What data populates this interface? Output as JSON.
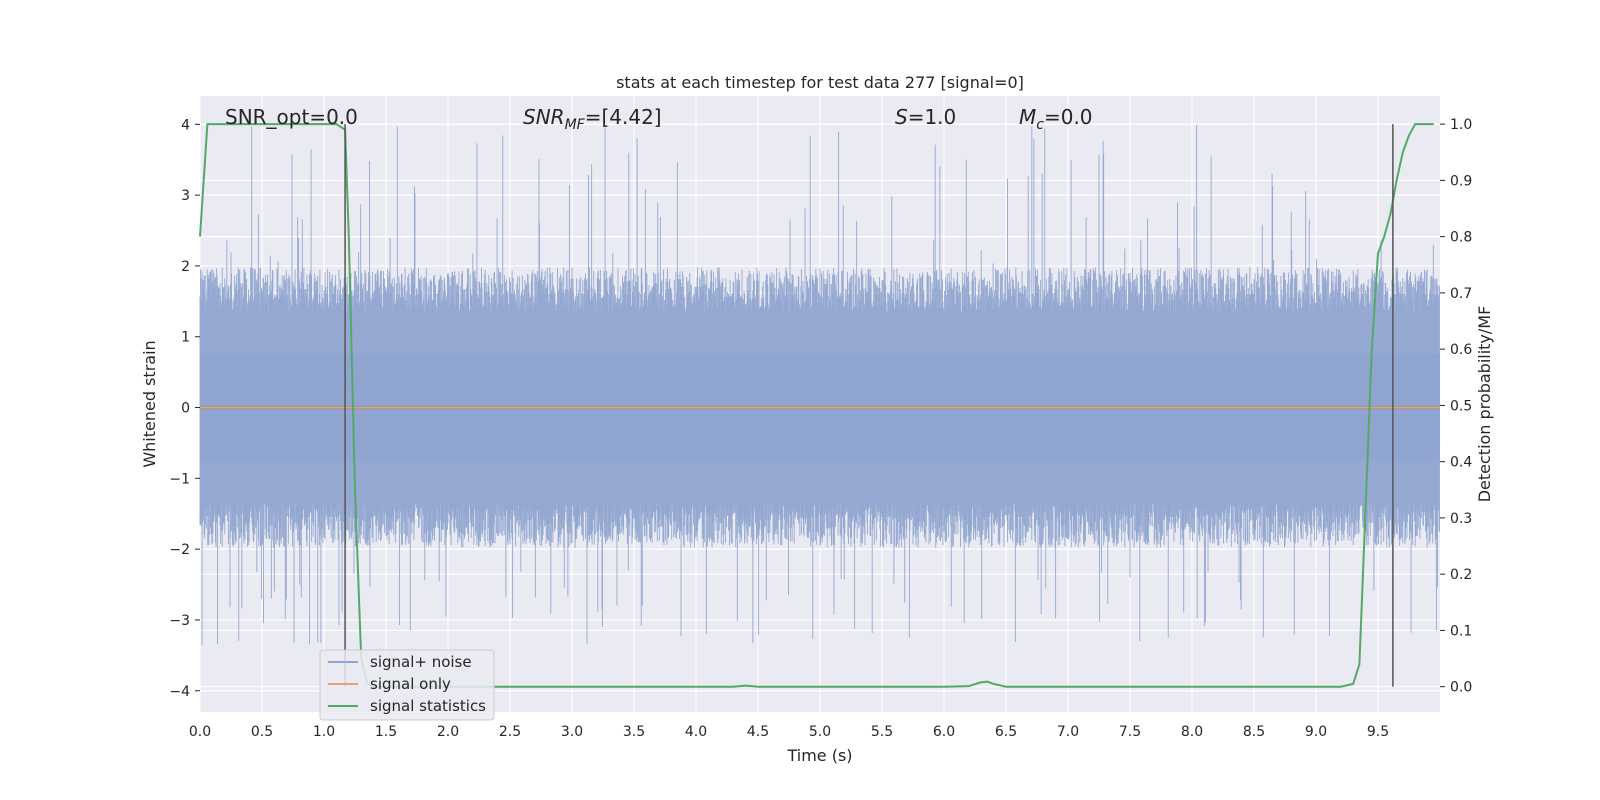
{
  "chart_data": {
    "type": "line",
    "title": "stats at each timestep for test data 277 [signal=0]",
    "xlabel": "Time (s)",
    "ylabel": "Whitened strain",
    "ylabel_right": "Detection probability/MF",
    "xlim": [
      0.0,
      10.0
    ],
    "ylim": [
      -4.3,
      4.4
    ],
    "ylim_right": [
      -0.045,
      1.05
    ],
    "x_ticks": [
      "0.0",
      "0.5",
      "1.0",
      "1.5",
      "2.0",
      "2.5",
      "3.0",
      "3.5",
      "4.0",
      "4.5",
      "5.0",
      "5.5",
      "6.0",
      "6.5",
      "7.0",
      "7.5",
      "8.0",
      "8.5",
      "9.0",
      "9.5"
    ],
    "y_ticks": [
      "4",
      "3",
      "2",
      "1",
      "0",
      "−1",
      "−2",
      "−3",
      "−4"
    ],
    "y_ticks_right": [
      "1.0",
      "0.9",
      "0.8",
      "0.7",
      "0.6",
      "0.5",
      "0.4",
      "0.3",
      "0.2",
      "0.1",
      "0.0"
    ],
    "grid": true,
    "legend_position": "lower-left",
    "annotations": {
      "snr_opt": "SNR_opt=0.0",
      "snr_mf_base": "SNR",
      "snr_mf_sub": "MF",
      "snr_mf_value": "=[4.42]",
      "s_var": "S",
      "s_value": "=1.0",
      "mc_base": "M",
      "mc_sub": "c",
      "mc_value": "=0.0"
    },
    "vlines_x": [
      1.17,
      9.62
    ],
    "series": [
      {
        "name": "signal+ noise",
        "color": "#8fa4cf",
        "axis": "left",
        "description_stats": {
          "mean": 0.0,
          "typical_amplitude": 1.8,
          "peak_amplitude": 4.0
        }
      },
      {
        "name": "signal only",
        "color": "#e8a07a",
        "axis": "left",
        "x": [
          0.0,
          10.0
        ],
        "y": [
          0.0,
          0.0
        ]
      },
      {
        "name": "signal statistics",
        "color": "#55a868",
        "axis": "right",
        "x": [
          0.0,
          0.06,
          0.12,
          0.2,
          0.4,
          0.6,
          0.8,
          1.0,
          1.1,
          1.17,
          1.2,
          1.25,
          1.3,
          1.35,
          1.4,
          1.6,
          2.0,
          2.5,
          3.0,
          3.5,
          4.0,
          4.3,
          4.4,
          4.5,
          5.0,
          5.5,
          6.0,
          6.2,
          6.3,
          6.35,
          6.4,
          6.5,
          7.0,
          7.5,
          8.0,
          8.5,
          9.0,
          9.2,
          9.3,
          9.35,
          9.45,
          9.5,
          9.55,
          9.6,
          9.65,
          9.7,
          9.75,
          9.8,
          9.85,
          9.9,
          9.95
        ],
        "y": [
          0.8,
          1.0,
          1.0,
          1.0,
          1.0,
          1.0,
          1.0,
          1.0,
          1.0,
          0.99,
          0.8,
          0.35,
          0.05,
          0.005,
          0.0,
          0.0,
          0.0,
          0.0,
          0.0,
          0.0,
          0.0,
          0.0,
          0.002,
          0.0,
          0.0,
          0.0,
          0.0,
          0.001,
          0.008,
          0.009,
          0.005,
          0.0,
          0.0,
          0.0,
          0.0,
          0.0,
          0.0,
          0.0,
          0.005,
          0.04,
          0.6,
          0.77,
          0.8,
          0.84,
          0.9,
          0.95,
          0.98,
          1.0,
          1.0,
          1.0,
          1.0
        ]
      }
    ]
  }
}
